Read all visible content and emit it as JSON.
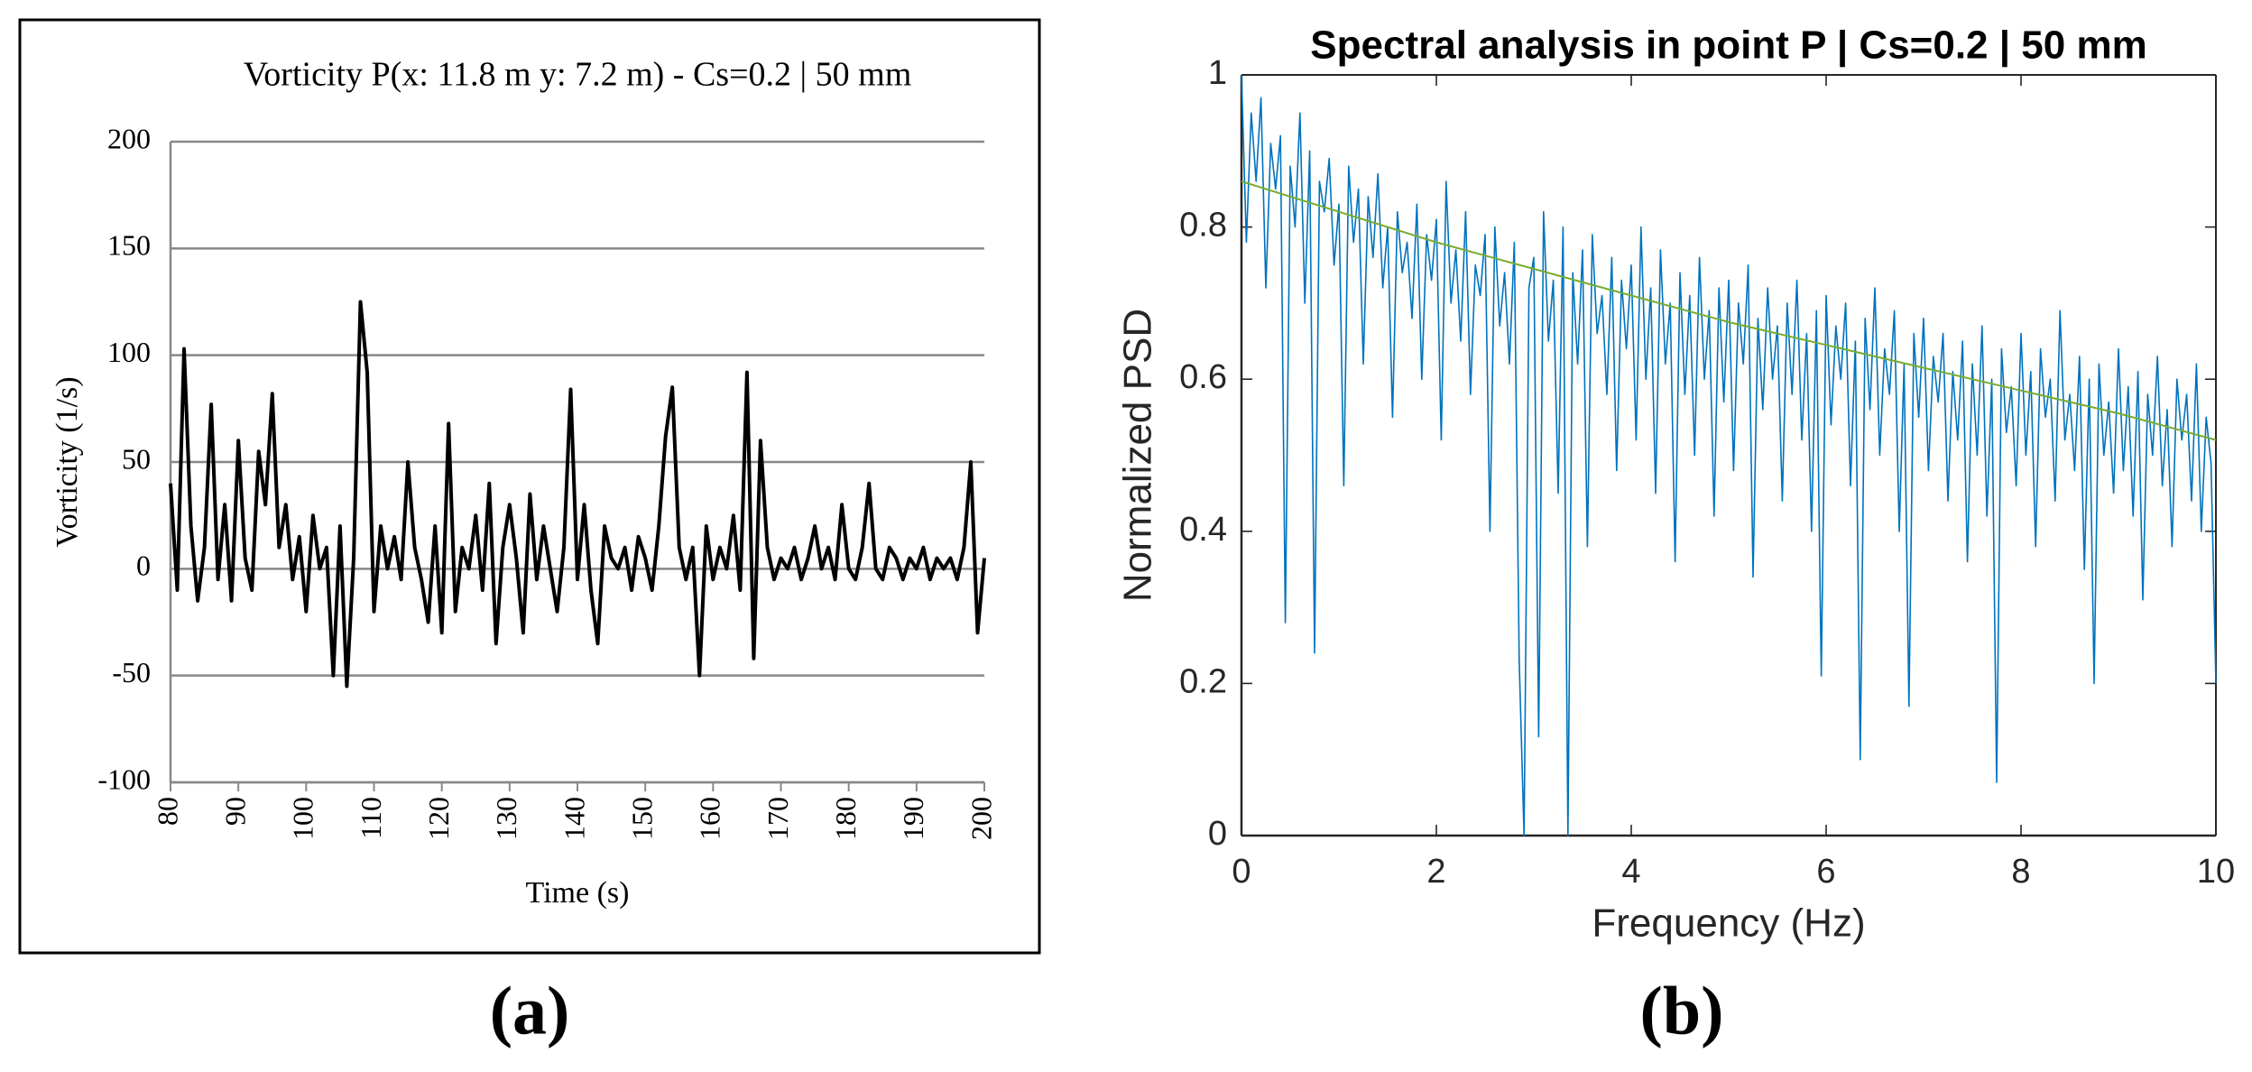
{
  "chart_data": [
    {
      "type": "line",
      "title": "Vorticity P(x: 11.8 m y: 7.2 m) - Cs=0.2 | 50 mm",
      "x_label": "Time (s)",
      "y_label": "Vorticity (1/s)",
      "panel_label": "(a)",
      "xlim": [
        80,
        200
      ],
      "xticks": [
        80,
        90,
        100,
        110,
        120,
        130,
        140,
        150,
        160,
        170,
        180,
        190,
        200
      ],
      "ylim": [
        -100,
        200
      ],
      "yticks": [
        -100,
        -50,
        0,
        50,
        100,
        150,
        200
      ],
      "grid": true,
      "series": [
        {
          "color": "#000000",
          "x": [
            80,
            81,
            82,
            83,
            84,
            85,
            86,
            87,
            88,
            89,
            90,
            91,
            92,
            93,
            94,
            95,
            96,
            97,
            98,
            99,
            100,
            101,
            102,
            103,
            104,
            105,
            106,
            107,
            108,
            109,
            110,
            111,
            112,
            113,
            114,
            115,
            116,
            117,
            118,
            119,
            120,
            121,
            122,
            123,
            124,
            125,
            126,
            127,
            128,
            129,
            130,
            131,
            132,
            133,
            134,
            135,
            136,
            137,
            138,
            139,
            140,
            141,
            142,
            143,
            144,
            145,
            146,
            147,
            148,
            149,
            150,
            151,
            152,
            153,
            154,
            155,
            156,
            157,
            158,
            159,
            160,
            161,
            162,
            163,
            164,
            165,
            166,
            167,
            168,
            169,
            170,
            171,
            172,
            173,
            174,
            175,
            176,
            177,
            178,
            179,
            180,
            181,
            182,
            183,
            184,
            185,
            186,
            187,
            188,
            189,
            190,
            191,
            192,
            193,
            194,
            195,
            196,
            197,
            198,
            199,
            200
          ],
          "values": [
            40,
            -10,
            103,
            20,
            -15,
            10,
            77,
            -5,
            30,
            -15,
            60,
            5,
            -10,
            55,
            30,
            82,
            10,
            30,
            -5,
            15,
            -20,
            25,
            0,
            10,
            -50,
            20,
            -55,
            5,
            125,
            92,
            -20,
            20,
            0,
            15,
            -5,
            50,
            10,
            -5,
            -25,
            20,
            -30,
            68,
            -20,
            10,
            0,
            25,
            -10,
            40,
            -35,
            10,
            30,
            5,
            -30,
            35,
            -5,
            20,
            0,
            -20,
            10,
            84,
            -5,
            30,
            -10,
            -35,
            20,
            5,
            0,
            10,
            -10,
            15,
            5,
            -10,
            20,
            62,
            85,
            10,
            -5,
            10,
            -50,
            20,
            -5,
            10,
            0,
            25,
            -10,
            92,
            -42,
            60,
            10,
            -5,
            5,
            0,
            10,
            -5,
            5,
            20,
            0,
            10,
            -5,
            30,
            0,
            -5,
            10,
            40,
            0,
            -5,
            10,
            5,
            -5,
            5,
            0,
            10,
            -5,
            5,
            0,
            5,
            -5,
            10,
            50,
            -30,
            5
          ]
        }
      ]
    },
    {
      "type": "line",
      "title": "Spectral analysis in point P | Cs=0.2 | 50 mm",
      "x_label": "Frequency (Hz)",
      "y_label": "Normalized PSD",
      "panel_label": "(b)",
      "xlim": [
        0,
        10
      ],
      "xticks": [
        0,
        2,
        4,
        6,
        8,
        10
      ],
      "ylim": [
        0,
        1
      ],
      "yticks": [
        0,
        0.2,
        0.4,
        0.6,
        0.8,
        1
      ],
      "grid": false,
      "series": [
        {
          "color": "#0072bd",
          "x": [
            0,
            0.05,
            0.1,
            0.15,
            0.2,
            0.25,
            0.3,
            0.35,
            0.4,
            0.45,
            0.5,
            0.55,
            0.6,
            0.65,
            0.7,
            0.75,
            0.8,
            0.85,
            0.9,
            0.95,
            1,
            1.05,
            1.1,
            1.15,
            1.2,
            1.25,
            1.3,
            1.35,
            1.4,
            1.45,
            1.5,
            1.55,
            1.6,
            1.65,
            1.7,
            1.75,
            1.8,
            1.85,
            1.9,
            1.95,
            2,
            2.05,
            2.1,
            2.15,
            2.2,
            2.25,
            2.3,
            2.35,
            2.4,
            2.45,
            2.5,
            2.55,
            2.6,
            2.65,
            2.7,
            2.75,
            2.8,
            2.85,
            2.9,
            2.95,
            3,
            3.05,
            3.1,
            3.15,
            3.2,
            3.25,
            3.3,
            3.35,
            3.4,
            3.45,
            3.5,
            3.55,
            3.6,
            3.65,
            3.7,
            3.75,
            3.8,
            3.85,
            3.9,
            3.95,
            4,
            4.05,
            4.1,
            4.15,
            4.2,
            4.25,
            4.3,
            4.35,
            4.4,
            4.45,
            4.5,
            4.55,
            4.6,
            4.65,
            4.7,
            4.75,
            4.8,
            4.85,
            4.9,
            4.95,
            5,
            5.05,
            5.1,
            5.15,
            5.2,
            5.25,
            5.3,
            5.35,
            5.4,
            5.45,
            5.5,
            5.55,
            5.6,
            5.65,
            5.7,
            5.75,
            5.8,
            5.85,
            5.9,
            5.95,
            6,
            6.05,
            6.1,
            6.15,
            6.2,
            6.25,
            6.3,
            6.35,
            6.4,
            6.45,
            6.5,
            6.55,
            6.6,
            6.65,
            6.7,
            6.75,
            6.8,
            6.85,
            6.9,
            6.95,
            7,
            7.05,
            7.1,
            7.15,
            7.2,
            7.25,
            7.3,
            7.35,
            7.4,
            7.45,
            7.5,
            7.55,
            7.6,
            7.65,
            7.7,
            7.75,
            7.8,
            7.85,
            7.9,
            7.95,
            8,
            8.05,
            8.1,
            8.15,
            8.2,
            8.25,
            8.3,
            8.35,
            8.4,
            8.45,
            8.5,
            8.55,
            8.6,
            8.65,
            8.7,
            8.75,
            8.8,
            8.85,
            8.9,
            8.95,
            9,
            9.05,
            9.1,
            9.15,
            9.2,
            9.25,
            9.3,
            9.35,
            9.4,
            9.45,
            9.5,
            9.55,
            9.6,
            9.65,
            9.7,
            9.75,
            9.8,
            9.85,
            9.9,
            9.95,
            10
          ],
          "values": [
            1.0,
            0.78,
            0.95,
            0.86,
            0.97,
            0.72,
            0.91,
            0.85,
            0.92,
            0.28,
            0.88,
            0.8,
            0.95,
            0.7,
            0.9,
            0.24,
            0.86,
            0.82,
            0.89,
            0.75,
            0.83,
            0.46,
            0.88,
            0.78,
            0.85,
            0.62,
            0.84,
            0.76,
            0.87,
            0.72,
            0.8,
            0.55,
            0.82,
            0.74,
            0.78,
            0.68,
            0.83,
            0.6,
            0.79,
            0.73,
            0.81,
            0.52,
            0.86,
            0.7,
            0.77,
            0.65,
            0.82,
            0.58,
            0.75,
            0.71,
            0.79,
            0.4,
            0.8,
            0.67,
            0.74,
            0.62,
            0.78,
            0.23,
            0.0,
            0.72,
            0.76,
            0.13,
            0.82,
            0.65,
            0.73,
            0.45,
            0.8,
            0.0,
            0.74,
            0.62,
            0.77,
            0.38,
            0.79,
            0.66,
            0.71,
            0.58,
            0.76,
            0.48,
            0.73,
            0.64,
            0.75,
            0.52,
            0.8,
            0.6,
            0.72,
            0.45,
            0.77,
            0.62,
            0.7,
            0.36,
            0.74,
            0.58,
            0.71,
            0.5,
            0.76,
            0.6,
            0.69,
            0.42,
            0.72,
            0.57,
            0.73,
            0.48,
            0.7,
            0.62,
            0.75,
            0.34,
            0.68,
            0.56,
            0.72,
            0.6,
            0.67,
            0.44,
            0.7,
            0.58,
            0.73,
            0.52,
            0.66,
            0.4,
            0.69,
            0.21,
            0.71,
            0.54,
            0.67,
            0.6,
            0.7,
            0.46,
            0.65,
            0.1,
            0.68,
            0.56,
            0.72,
            0.5,
            0.64,
            0.58,
            0.69,
            0.4,
            0.62,
            0.17,
            0.66,
            0.55,
            0.68,
            0.48,
            0.63,
            0.57,
            0.66,
            0.44,
            0.61,
            0.52,
            0.65,
            0.36,
            0.62,
            0.5,
            0.67,
            0.42,
            0.6,
            0.07,
            0.64,
            0.53,
            0.59,
            0.46,
            0.66,
            0.5,
            0.61,
            0.38,
            0.64,
            0.55,
            0.6,
            0.44,
            0.69,
            0.52,
            0.58,
            0.48,
            0.63,
            0.35,
            0.6,
            0.2,
            0.62,
            0.5,
            0.57,
            0.45,
            0.64,
            0.48,
            0.59,
            0.42,
            0.61,
            0.31,
            0.58,
            0.5,
            0.63,
            0.46,
            0.56,
            0.38,
            0.6,
            0.52,
            0.58,
            0.44,
            0.62,
            0.4,
            0.55,
            0.49,
            0.2
          ]
        },
        {
          "color": "#77ac30",
          "x": [
            0,
            1,
            2,
            3,
            4,
            5,
            6,
            7,
            8,
            9,
            10
          ],
          "values": [
            0.86,
            0.82,
            0.78,
            0.745,
            0.71,
            0.675,
            0.645,
            0.615,
            0.585,
            0.555,
            0.52
          ]
        }
      ]
    }
  ]
}
